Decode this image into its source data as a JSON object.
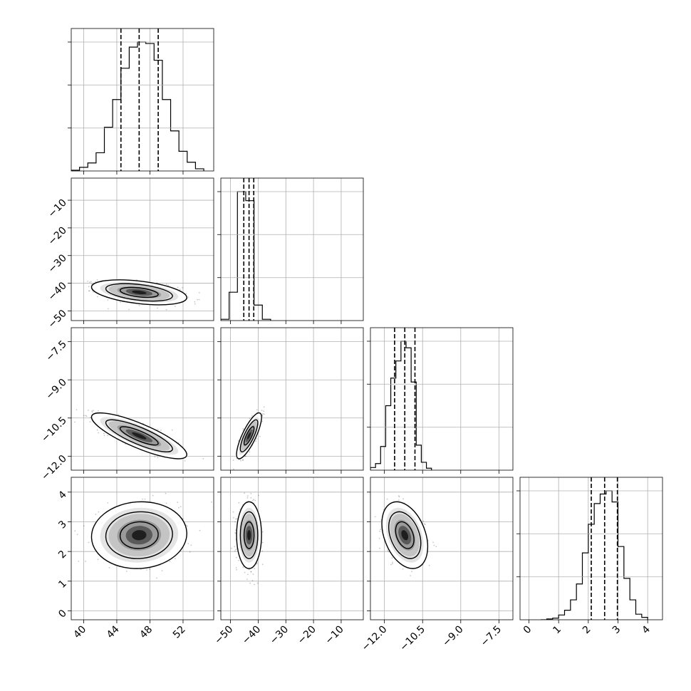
{
  "chart_data": {
    "type": "corner",
    "grid": true,
    "quantiles_shown": "dashed vertical lines on diagonal histograms",
    "params": [
      {
        "range": [
          38.5,
          55.7
        ],
        "ticks": [
          40,
          44,
          48,
          52
        ],
        "tick_labels": [
          "40",
          "44",
          "48",
          "52"
        ],
        "quantiles": [
          44.5,
          46.7,
          49.0
        ]
      },
      {
        "range": [
          -53.5,
          -2.0
        ],
        "ticks": [
          -50,
          -40,
          -30,
          -20,
          -10
        ],
        "tick_labels": [
          "−50",
          "−40",
          "−30",
          "−20",
          "−10"
        ],
        "quantiles": [
          -45.2,
          -43.3,
          -41.6
        ]
      },
      {
        "range": [
          -12.55,
          -6.95
        ],
        "ticks": [
          -12.0,
          -10.5,
          -9.0,
          -7.5
        ],
        "tick_labels": [
          "−12.0",
          "−10.5",
          "−9.0",
          "−7.5"
        ],
        "quantiles": [
          -11.6,
          -11.2,
          -10.8
        ]
      },
      {
        "range": [
          -0.3,
          4.5
        ],
        "ticks": [
          0,
          1,
          2,
          3,
          4
        ],
        "tick_labels": [
          "0",
          "1",
          "2",
          "3",
          "4"
        ],
        "quantiles": [
          2.1,
          2.55,
          2.98
        ]
      }
    ],
    "histograms": [
      {
        "param": 0,
        "edges": [
          38.5,
          39.5,
          40.5,
          41.5,
          42.5,
          43.5,
          44.5,
          45.5,
          46.5,
          47.5,
          48.5,
          49.5,
          50.5,
          51.5,
          52.5,
          53.5,
          54.5
        ],
        "counts": [
          1,
          5,
          11,
          25,
          60,
          98,
          141,
          170,
          177,
          175,
          152,
          98,
          55,
          27,
          12,
          3
        ]
      },
      {
        "param": 1,
        "edges": [
          -53.5,
          -50.5,
          -47.5,
          -44.5,
          -41.5,
          -38.5,
          -35.5
        ],
        "counts": [
          1,
          22,
          100,
          93,
          12,
          1
        ]
      },
      {
        "param": 2,
        "edges": [
          -12.55,
          -12.35,
          -12.15,
          -11.95,
          -11.75,
          -11.55,
          -11.35,
          -11.15,
          -10.95,
          -10.75,
          -10.55,
          -10.35,
          -10.15
        ],
        "counts": [
          4,
          10,
          36,
          98,
          140,
          166,
          196,
          186,
          134,
          38,
          12,
          3
        ]
      },
      {
        "param": 3,
        "edges": [
          0.4,
          0.6,
          0.8,
          1.0,
          1.2,
          1.4,
          1.6,
          1.8,
          2.0,
          2.2,
          2.4,
          2.6,
          2.8,
          3.0,
          3.2,
          3.4,
          3.6,
          3.8,
          4.0
        ],
        "counts": [
          0,
          1,
          2,
          6,
          12,
          25,
          45,
          84,
          120,
          146,
          158,
          162,
          148,
          92,
          52,
          25,
          7,
          3
        ]
      }
    ],
    "joint": [
      {
        "row": 1,
        "col": 0,
        "mean": [
          46.7,
          -43.3
        ],
        "sd": [
          2.3,
          1.8
        ],
        "rho": -0.42
      },
      {
        "row": 2,
        "col": 0,
        "mean": [
          46.7,
          -11.2
        ],
        "sd": [
          2.3,
          0.36
        ],
        "rho": -0.82
      },
      {
        "row": 2,
        "col": 1,
        "mean": [
          -43.3,
          -11.2
        ],
        "sd": [
          1.8,
          0.36
        ],
        "rho": 0.8
      },
      {
        "row": 3,
        "col": 0,
        "mean": [
          46.7,
          2.55
        ],
        "sd": [
          2.3,
          0.45
        ],
        "rho": 0.05
      },
      {
        "row": 3,
        "col": 1,
        "mean": [
          -43.3,
          2.55
        ],
        "sd": [
          1.8,
          0.45
        ],
        "rho": 0.0
      },
      {
        "row": 3,
        "col": 2,
        "mean": [
          -11.2,
          2.55
        ],
        "sd": [
          0.36,
          0.45
        ],
        "rho": -0.35
      }
    ]
  }
}
